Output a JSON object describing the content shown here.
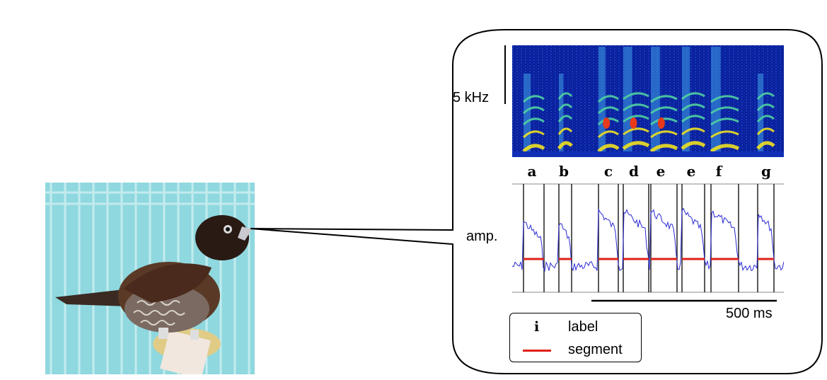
{
  "spectrogram": {
    "freq_scale_label": "5 kHz",
    "syllable_labels": [
      "a",
      "b",
      "c",
      "d",
      "e",
      "e",
      "f",
      "g"
    ]
  },
  "amplitude": {
    "axis_label": "amp.",
    "time_scale_label": "500 ms"
  },
  "legend": {
    "label_symbol": "i",
    "label_text": "label",
    "segment_text": "segment"
  },
  "colors": {
    "amplitude_trace": "#2a2ad6",
    "segment": "#e0201a",
    "spectrogram_bg": "#0a1f9c"
  }
}
